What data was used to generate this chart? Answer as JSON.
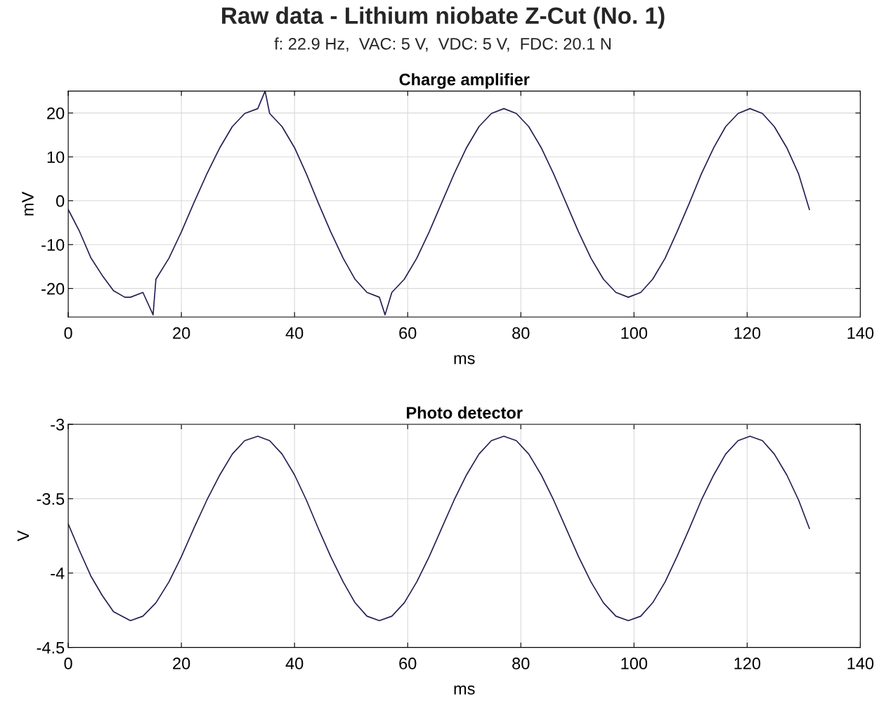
{
  "chart_data": [
    {
      "type": "line",
      "annotations": [
        "Raw data - Lithium niobate Z-Cut (No. 1)",
        "f: 22.9 Hz,  VAC: 5 V,  VDC: 5 V,  FDC: 20.1 N"
      ],
      "title": "Charge amplifier",
      "xlabel": "ms",
      "ylabel": "mV",
      "xlim": [
        0,
        140
      ],
      "xticks": [
        0,
        20,
        40,
        60,
        80,
        100,
        120,
        140
      ],
      "ylim": [
        -26.5,
        25
      ],
      "yticks": [
        -20,
        -10,
        0,
        10,
        20
      ],
      "grid": true,
      "marker": "none",
      "line_style": "solid",
      "series": [
        {
          "color": "#241f52",
          "x": [
            0,
            2,
            4,
            6,
            8,
            10,
            11,
            13.2,
            15,
            15.5,
            17.8,
            20,
            22.2,
            24.5,
            26.8,
            29,
            31.2,
            33.5,
            34.8,
            35.6,
            37.8,
            40,
            42.1,
            44.2,
            46.4,
            48.6,
            50.7,
            52.8,
            55,
            56,
            57.2,
            59.4,
            61.6,
            63.8,
            66,
            68.2,
            70.4,
            72.6,
            74.8,
            77,
            79.2,
            81.4,
            83.6,
            85.8,
            88,
            90.2,
            92.4,
            94.6,
            96.8,
            99,
            101.2,
            103.3,
            105.5,
            107.6,
            109.8,
            111.9,
            114.1,
            116.2,
            118.4,
            120.5,
            122.7,
            124.8,
            127,
            129.1,
            131
          ],
          "values": [
            -2,
            -7,
            -13,
            -17,
            -20.5,
            -22,
            -22,
            -20.9,
            -26,
            -17.9,
            -13.1,
            -7.1,
            -0.5,
            6.1,
            12.1,
            16.9,
            19.9,
            21,
            25,
            19.9,
            16.9,
            12.1,
            6.1,
            -0.5,
            -7.1,
            -13.1,
            -17.9,
            -20.9,
            -22,
            -26,
            -20.9,
            -17.9,
            -13.1,
            -7.1,
            -0.5,
            6.1,
            12.1,
            16.9,
            19.9,
            21,
            19.9,
            16.9,
            12.1,
            6.1,
            -0.5,
            -7.1,
            -13.1,
            -17.9,
            -20.9,
            -22,
            -20.9,
            -17.9,
            -13.1,
            -7.1,
            -0.5,
            6.1,
            12.1,
            16.9,
            19.9,
            21,
            19.9,
            16.9,
            12.1,
            6.1,
            -2
          ]
        }
      ]
    },
    {
      "type": "line",
      "title": "Photo detector",
      "xlabel": "ms",
      "ylabel": "V",
      "xlim": [
        0,
        140
      ],
      "xticks": [
        0,
        20,
        40,
        60,
        80,
        100,
        120,
        140
      ],
      "ylim": [
        -4.5,
        -3
      ],
      "yticks": [
        -4.5,
        -4,
        -3.5,
        -3
      ],
      "grid": true,
      "marker": "none",
      "line_style": "solid",
      "series": [
        {
          "color": "#241f52",
          "x": [
            0,
            2,
            4,
            6,
            8,
            11,
            13.2,
            15.5,
            17.8,
            20,
            22.2,
            24.5,
            26.8,
            29,
            31.2,
            33.5,
            35.6,
            37.8,
            40,
            42.1,
            44.2,
            46.4,
            48.6,
            50.7,
            52.8,
            55,
            57.2,
            59.4,
            61.6,
            63.8,
            66,
            68.2,
            70.4,
            72.6,
            74.8,
            77,
            79.2,
            81.4,
            83.6,
            85.8,
            88,
            90.2,
            92.4,
            94.6,
            96.8,
            99,
            101.2,
            103.3,
            105.5,
            107.6,
            109.8,
            111.9,
            114.1,
            116.2,
            118.4,
            120.5,
            122.7,
            124.8,
            127,
            129.1,
            131
          ],
          "values": [
            -3.67,
            -3.85,
            -4.02,
            -4.15,
            -4.26,
            -4.32,
            -4.29,
            -4.2,
            -4.06,
            -3.89,
            -3.7,
            -3.51,
            -3.34,
            -3.2,
            -3.11,
            -3.08,
            -3.11,
            -3.2,
            -3.34,
            -3.51,
            -3.7,
            -3.89,
            -4.06,
            -4.2,
            -4.29,
            -4.32,
            -4.29,
            -4.2,
            -4.06,
            -3.89,
            -3.7,
            -3.51,
            -3.34,
            -3.2,
            -3.11,
            -3.08,
            -3.11,
            -3.2,
            -3.34,
            -3.51,
            -3.7,
            -3.89,
            -4.06,
            -4.2,
            -4.29,
            -4.32,
            -4.29,
            -4.2,
            -4.06,
            -3.89,
            -3.7,
            -3.51,
            -3.34,
            -3.2,
            -3.11,
            -3.08,
            -3.11,
            -3.2,
            -3.34,
            -3.51,
            -3.7
          ]
        }
      ]
    }
  ]
}
